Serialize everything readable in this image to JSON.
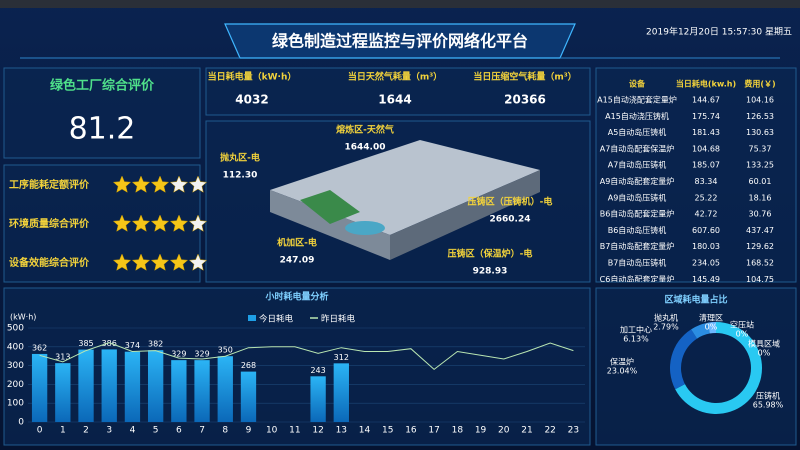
{
  "header": {
    "title": "绿色制造过程监控与评价网络化平台",
    "datetime": "2019年12月20日 15:57:30 星期五"
  },
  "evaluation": {
    "title": "绿色工厂综合评价",
    "score": 81.2
  },
  "ratings": {
    "stars_total": 5,
    "items": [
      {
        "label": "工序能耗定额评价",
        "stars": 3
      },
      {
        "label": "环境质量综合评价",
        "stars": 4
      },
      {
        "label": "设备效能综合评价",
        "stars": 4
      }
    ]
  },
  "kpis": [
    {
      "label": "当日耗电量（kW·h）",
      "value": 4032
    },
    {
      "label": "当日天然气耗量（m³）",
      "value": 1644
    },
    {
      "label": "当日压缩空气耗量（m³）",
      "value": 20366
    }
  ],
  "factory_labels": [
    {
      "label": "熔炼区-天然气",
      "value": "1644.00"
    },
    {
      "label": "抛丸区-电",
      "value": "112.30"
    },
    {
      "label": "压铸区（压铸机）-电",
      "value": "2660.24"
    },
    {
      "label": "机加区-电",
      "value": "247.09"
    },
    {
      "label": "压铸区（保温炉）-电",
      "value": "928.93"
    }
  ],
  "table": {
    "headers": [
      "设备",
      "当日耗电(kw.h)",
      "费用(￥)"
    ],
    "rows": [
      [
        "A15自动浇配套定量炉",
        "144.67",
        "104.16"
      ],
      [
        "A15自动浇压铸机",
        "175.74",
        "126.53"
      ],
      [
        "A5自动岛压铸机",
        "181.43",
        "130.63"
      ],
      [
        "A7自动岛配套保温炉",
        "104.68",
        "75.37"
      ],
      [
        "A7自动岛压铸机",
        "185.07",
        "133.25"
      ],
      [
        "A9自动岛配套定量炉",
        "83.34",
        "60.01"
      ],
      [
        "A9自动岛压铸机",
        "25.22",
        "18.16"
      ],
      [
        "B6自动岛配套定量炉",
        "42.72",
        "30.76"
      ],
      [
        "B6自动岛压铸机",
        "607.60",
        "437.47"
      ],
      [
        "B7自动岛配套定量炉",
        "180.03",
        "129.62"
      ],
      [
        "B7自动岛压铸机",
        "234.05",
        "168.52"
      ],
      [
        "C6自动岛配套定量炉",
        "145.49",
        "104.75"
      ]
    ]
  },
  "hourly_chart": {
    "type": "bar",
    "title": "小时耗电量分析",
    "y_unit": "(kW·h)",
    "categories": [
      "0",
      "1",
      "2",
      "3",
      "4",
      "5",
      "6",
      "7",
      "8",
      "9",
      "10",
      "11",
      "12",
      "13",
      "14",
      "15",
      "16",
      "17",
      "18",
      "19",
      "20",
      "21",
      "22",
      "23"
    ],
    "series": [
      {
        "name": "今日耗电",
        "type": "bar",
        "color": "#1e9fe6",
        "values": [
          362,
          313,
          385,
          386,
          374,
          382,
          329,
          329,
          350,
          268,
          null,
          null,
          243,
          312,
          null,
          null,
          null,
          null,
          null,
          null,
          null,
          null,
          null,
          null
        ]
      },
      {
        "name": "昨日耗电",
        "type": "line",
        "color": "#b9e6b2",
        "values": [
          355,
          320,
          380,
          422,
          375,
          380,
          340,
          335,
          350,
          395,
          400,
          400,
          365,
          395,
          375,
          375,
          390,
          280,
          375,
          355,
          335,
          375,
          420,
          380
        ]
      }
    ],
    "ylim": [
      0,
      500
    ],
    "yticks": [
      0,
      100,
      200,
      300,
      400,
      500
    ],
    "grid": true
  },
  "region_chart": {
    "type": "pie",
    "title": "区域耗电量占比",
    "categories": [
      "压铸机",
      "保温炉",
      "加工中心",
      "抛丸机",
      "清理区",
      "空压站",
      "模具区域"
    ],
    "values": [
      65.98,
      23.04,
      6.13,
      2.79,
      0,
      0,
      0
    ],
    "value_labels": [
      "65.98%",
      "23.04%",
      "6.13%",
      "2.79%",
      "0%",
      "0%",
      "0%"
    ],
    "colors": [
      "#29c9f2",
      "#1462c4",
      "#2b8de2",
      "#6bb8ff",
      "#8fdcff",
      "#a9e6ff",
      "#c4efff"
    ]
  }
}
